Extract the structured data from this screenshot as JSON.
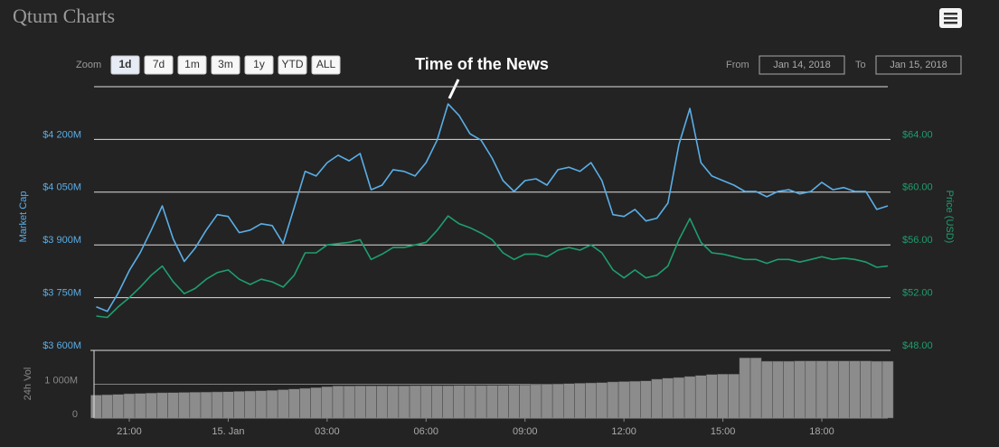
{
  "header": {
    "title": "Qtum Charts"
  },
  "zoom": {
    "label": "Zoom",
    "buttons": [
      "1d",
      "7d",
      "1m",
      "3m",
      "1y",
      "YTD",
      "ALL"
    ],
    "active": 0
  },
  "range": {
    "from_label": "From",
    "from": "Jan 14, 2018",
    "to_label": "To",
    "to": "Jan 15, 2018"
  },
  "chart_data": {
    "type": "line",
    "annotation": "Time of the News",
    "ylabel": "Market Cap",
    "y2label": "Price (USD)",
    "vol_label": "24h Vol",
    "categories": [
      null,
      null,
      null,
      "21:00",
      null,
      null,
      null,
      null,
      null,
      null,
      null,
      null,
      "15. Jan",
      null,
      null,
      null,
      null,
      null,
      null,
      null,
      null,
      "03:00",
      null,
      null,
      null,
      null,
      null,
      null,
      null,
      null,
      "06:00",
      null,
      null,
      null,
      null,
      null,
      null,
      null,
      null,
      "09:00",
      null,
      null,
      null,
      null,
      null,
      null,
      null,
      null,
      "12:00",
      null,
      null,
      null,
      null,
      null,
      null,
      null,
      null,
      "15:00",
      null,
      null,
      null,
      null,
      null,
      null,
      null,
      null,
      "18:00",
      null,
      null,
      null,
      null,
      null,
      null
    ],
    "ylim": [
      3600,
      4350
    ],
    "yticks": [
      {
        "value": 3600,
        "label": "$3 600M"
      },
      {
        "value": 3750,
        "label": "$3 750M"
      },
      {
        "value": 3900,
        "label": "$3 900M"
      },
      {
        "value": 4050,
        "label": "$4 050M"
      },
      {
        "value": 4200,
        "label": "$4 200M"
      }
    ],
    "y2lim": [
      48,
      68
    ],
    "y2ticks": [
      {
        "value": 48,
        "label": "$48.00"
      },
      {
        "value": 52,
        "label": "$52.00"
      },
      {
        "value": 56,
        "label": "$56.00"
      },
      {
        "value": 60,
        "label": "$60.00"
      },
      {
        "value": 64,
        "label": "$64.00"
      }
    ],
    "vol_ylim": [
      0,
      2000
    ],
    "vol_yticks": [
      0,
      {
        "value": 1000,
        "label": "1 000M"
      }
    ],
    "grid": true,
    "series": [
      {
        "color": "#5aaee6",
        "axis": "y",
        "values": [
          3724,
          3711,
          3763,
          3827,
          3878,
          3942,
          4011,
          3917,
          3853,
          3891,
          3942,
          3986,
          3981,
          3935,
          3942,
          3960,
          3955,
          3904,
          4006,
          4109,
          4096,
          4134,
          4155,
          4139,
          4160,
          4057,
          4070,
          4114,
          4109,
          4096,
          4134,
          4198,
          4301,
          4268,
          4216,
          4198,
          4147,
          4083,
          4052,
          4083,
          4088,
          4070,
          4114,
          4121,
          4109,
          4134,
          4083,
          3986,
          3981,
          4001,
          3968,
          3976,
          4019,
          4186,
          4288,
          4134,
          4096,
          4083,
          4070,
          4052,
          4052,
          4037,
          4052,
          4057,
          4045,
          4052,
          4078,
          4057,
          4063,
          4052,
          4052,
          4001,
          4011
        ]
      },
      {
        "color": "#1e9e6e",
        "axis": "y2",
        "values": [
          50.6,
          50.5,
          51.3,
          52.0,
          52.8,
          53.7,
          54.4,
          53.2,
          52.3,
          52.7,
          53.4,
          53.9,
          54.1,
          53.4,
          53.0,
          53.4,
          53.2,
          52.8,
          53.7,
          55.4,
          55.4,
          56.0,
          56.1,
          56.2,
          56.4,
          54.9,
          55.3,
          55.8,
          55.8,
          56.0,
          56.2,
          57.1,
          58.2,
          57.6,
          57.3,
          56.9,
          56.4,
          55.4,
          54.9,
          55.3,
          55.3,
          55.1,
          55.6,
          55.8,
          55.6,
          56.0,
          55.4,
          54.1,
          53.5,
          54.1,
          53.5,
          53.7,
          54.4,
          56.4,
          58.0,
          56.2,
          55.4,
          55.3,
          55.1,
          54.9,
          54.9,
          54.6,
          54.9,
          54.9,
          54.7,
          54.9,
          55.1,
          54.9,
          55.0,
          54.9,
          54.7,
          54.3,
          54.4
        ]
      },
      {
        "color": "#8c8c8c",
        "axis": "vol",
        "type": "bar",
        "values": [
          680,
          690,
          700,
          720,
          730,
          740,
          750,
          755,
          760,
          765,
          770,
          775,
          780,
          790,
          800,
          810,
          820,
          840,
          860,
          880,
          900,
          930,
          950,
          950,
          955,
          955,
          955,
          955,
          955,
          960,
          960,
          960,
          960,
          965,
          965,
          965,
          970,
          970,
          975,
          980,
          990,
          1000,
          1010,
          1020,
          1030,
          1040,
          1050,
          1070,
          1080,
          1090,
          1100,
          1150,
          1180,
          1200,
          1230,
          1260,
          1290,
          1300,
          1300,
          1780,
          1780,
          1680,
          1680,
          1680,
          1690,
          1690,
          1690,
          1690,
          1690,
          1690,
          1690,
          1680,
          1680
        ]
      }
    ]
  }
}
